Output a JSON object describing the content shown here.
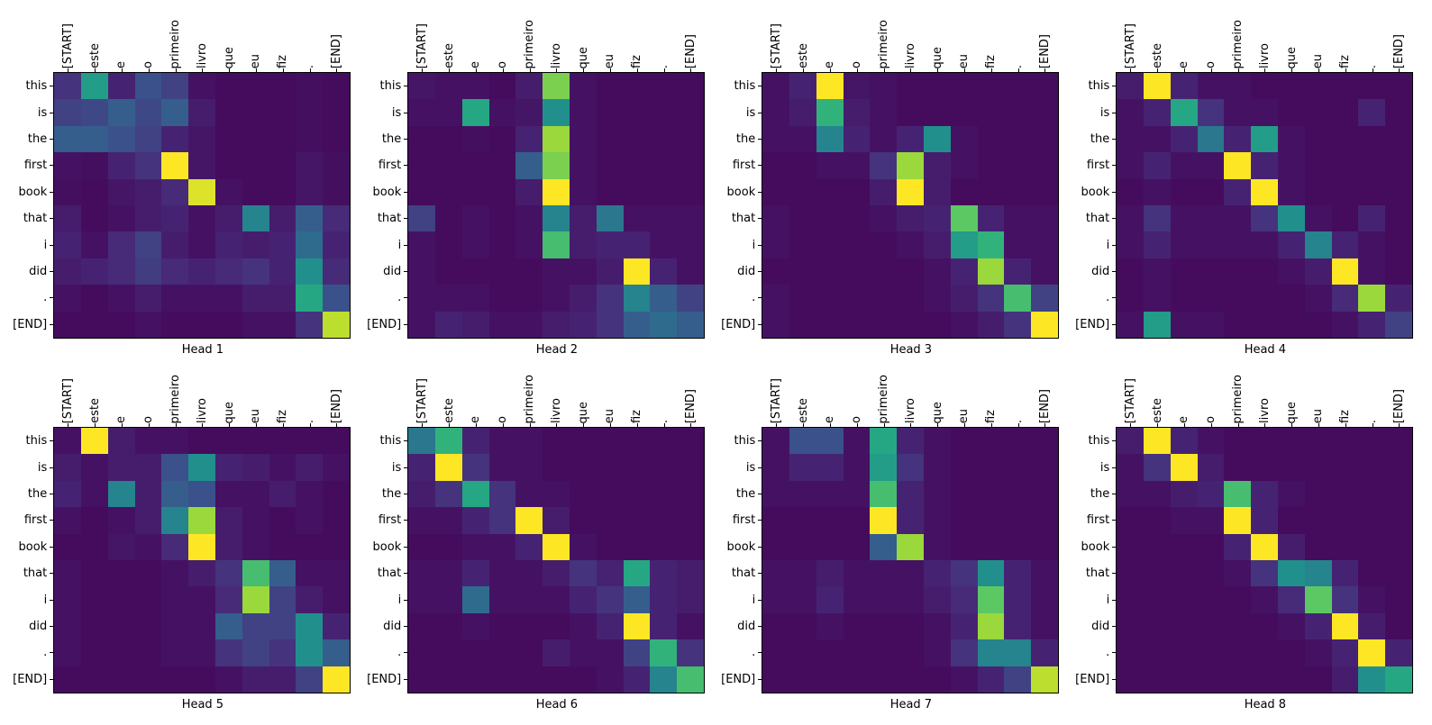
{
  "figure": {
    "background": "#ffffff",
    "description": "Transformer cross-attention weights, 8 heads, Portuguese source tokens (columns) vs English target tokens (rows)",
    "colormap_low": "#440154",
    "colormap_high": "#fde725"
  },
  "chart_data": {
    "type": "heatmap",
    "colormap": "viridis",
    "vmin": 0,
    "vmax": 1,
    "x_tokens": [
      "[START]",
      "este",
      "e",
      "o",
      "primeiro",
      "livro",
      "que",
      "eu",
      "fiz",
      ".",
      "[END]"
    ],
    "y_tokens": [
      "this",
      "is",
      "the",
      "first",
      "book",
      "that",
      "i",
      "did",
      ".",
      "[END]"
    ],
    "heads": [
      {
        "title": "Head 1",
        "values": [
          [
            0.15,
            0.55,
            0.1,
            0.25,
            0.2,
            0.05,
            0.03,
            0.03,
            0.03,
            0.04,
            0.03
          ],
          [
            0.2,
            0.22,
            0.3,
            0.22,
            0.3,
            0.08,
            0.03,
            0.03,
            0.03,
            0.04,
            0.03
          ],
          [
            0.3,
            0.3,
            0.25,
            0.2,
            0.1,
            0.06,
            0.03,
            0.03,
            0.03,
            0.04,
            0.03
          ],
          [
            0.05,
            0.04,
            0.1,
            0.15,
            1.0,
            0.06,
            0.03,
            0.03,
            0.03,
            0.06,
            0.04
          ],
          [
            0.04,
            0.03,
            0.06,
            0.08,
            0.12,
            0.95,
            0.05,
            0.03,
            0.03,
            0.06,
            0.04
          ],
          [
            0.08,
            0.03,
            0.05,
            0.08,
            0.1,
            0.05,
            0.08,
            0.45,
            0.08,
            0.3,
            0.12
          ],
          [
            0.1,
            0.05,
            0.12,
            0.2,
            0.08,
            0.05,
            0.1,
            0.08,
            0.1,
            0.35,
            0.1
          ],
          [
            0.08,
            0.1,
            0.12,
            0.18,
            0.12,
            0.1,
            0.12,
            0.15,
            0.1,
            0.5,
            0.12
          ],
          [
            0.05,
            0.03,
            0.05,
            0.08,
            0.05,
            0.05,
            0.05,
            0.08,
            0.08,
            0.6,
            0.25
          ],
          [
            0.03,
            0.03,
            0.03,
            0.05,
            0.03,
            0.03,
            0.03,
            0.05,
            0.05,
            0.15,
            0.9
          ]
        ]
      },
      {
        "title": "Head 2",
        "values": [
          [
            0.06,
            0.05,
            0.05,
            0.03,
            0.08,
            0.8,
            0.05,
            0.03,
            0.03,
            0.03,
            0.03
          ],
          [
            0.05,
            0.05,
            0.6,
            0.05,
            0.06,
            0.5,
            0.05,
            0.03,
            0.03,
            0.03,
            0.03
          ],
          [
            0.03,
            0.03,
            0.04,
            0.03,
            0.1,
            0.85,
            0.05,
            0.03,
            0.03,
            0.03,
            0.03
          ],
          [
            0.03,
            0.03,
            0.03,
            0.03,
            0.3,
            0.8,
            0.05,
            0.03,
            0.03,
            0.03,
            0.03
          ],
          [
            0.03,
            0.03,
            0.03,
            0.03,
            0.08,
            1.0,
            0.05,
            0.03,
            0.03,
            0.03,
            0.03
          ],
          [
            0.2,
            0.03,
            0.05,
            0.03,
            0.05,
            0.45,
            0.08,
            0.4,
            0.05,
            0.05,
            0.05
          ],
          [
            0.05,
            0.03,
            0.05,
            0.03,
            0.05,
            0.7,
            0.08,
            0.1,
            0.1,
            0.05,
            0.05
          ],
          [
            0.05,
            0.03,
            0.03,
            0.03,
            0.03,
            0.05,
            0.05,
            0.08,
            1.0,
            0.1,
            0.05
          ],
          [
            0.05,
            0.05,
            0.05,
            0.03,
            0.03,
            0.05,
            0.08,
            0.15,
            0.45,
            0.3,
            0.2
          ],
          [
            0.05,
            0.1,
            0.08,
            0.05,
            0.05,
            0.08,
            0.1,
            0.15,
            0.3,
            0.35,
            0.3
          ]
        ]
      },
      {
        "title": "Head 3",
        "values": [
          [
            0.05,
            0.1,
            1.0,
            0.06,
            0.05,
            0.03,
            0.03,
            0.03,
            0.03,
            0.03,
            0.03
          ],
          [
            0.05,
            0.08,
            0.65,
            0.08,
            0.05,
            0.03,
            0.03,
            0.03,
            0.03,
            0.03,
            0.03
          ],
          [
            0.05,
            0.05,
            0.45,
            0.1,
            0.05,
            0.1,
            0.5,
            0.05,
            0.03,
            0.03,
            0.03
          ],
          [
            0.03,
            0.03,
            0.05,
            0.05,
            0.15,
            0.85,
            0.08,
            0.05,
            0.03,
            0.03,
            0.03
          ],
          [
            0.03,
            0.03,
            0.03,
            0.03,
            0.08,
            1.0,
            0.08,
            0.03,
            0.03,
            0.03,
            0.03
          ],
          [
            0.05,
            0.03,
            0.03,
            0.03,
            0.05,
            0.08,
            0.1,
            0.75,
            0.1,
            0.05,
            0.05
          ],
          [
            0.05,
            0.03,
            0.03,
            0.03,
            0.03,
            0.05,
            0.08,
            0.55,
            0.65,
            0.05,
            0.05
          ],
          [
            0.03,
            0.03,
            0.03,
            0.03,
            0.03,
            0.03,
            0.05,
            0.1,
            0.85,
            0.1,
            0.05
          ],
          [
            0.05,
            0.03,
            0.03,
            0.03,
            0.03,
            0.03,
            0.05,
            0.08,
            0.15,
            0.7,
            0.2
          ],
          [
            0.05,
            0.03,
            0.03,
            0.03,
            0.03,
            0.03,
            0.03,
            0.05,
            0.08,
            0.15,
            1.0
          ]
        ]
      },
      {
        "title": "Head 4",
        "values": [
          [
            0.08,
            1.0,
            0.1,
            0.05,
            0.05,
            0.03,
            0.03,
            0.03,
            0.03,
            0.03,
            0.03
          ],
          [
            0.05,
            0.1,
            0.6,
            0.15,
            0.05,
            0.05,
            0.03,
            0.03,
            0.03,
            0.1,
            0.03
          ],
          [
            0.05,
            0.05,
            0.1,
            0.4,
            0.1,
            0.55,
            0.05,
            0.03,
            0.03,
            0.03,
            0.03
          ],
          [
            0.05,
            0.1,
            0.05,
            0.05,
            1.0,
            0.1,
            0.05,
            0.03,
            0.03,
            0.03,
            0.03
          ],
          [
            0.03,
            0.05,
            0.03,
            0.03,
            0.1,
            1.0,
            0.05,
            0.03,
            0.03,
            0.03,
            0.03
          ],
          [
            0.05,
            0.15,
            0.05,
            0.05,
            0.05,
            0.15,
            0.5,
            0.05,
            0.03,
            0.1,
            0.03
          ],
          [
            0.05,
            0.1,
            0.05,
            0.05,
            0.05,
            0.05,
            0.1,
            0.45,
            0.1,
            0.05,
            0.03
          ],
          [
            0.03,
            0.05,
            0.03,
            0.03,
            0.03,
            0.03,
            0.05,
            0.08,
            1.0,
            0.05,
            0.03
          ],
          [
            0.03,
            0.05,
            0.03,
            0.03,
            0.03,
            0.03,
            0.03,
            0.05,
            0.12,
            0.85,
            0.1
          ],
          [
            0.05,
            0.55,
            0.05,
            0.05,
            0.03,
            0.03,
            0.03,
            0.03,
            0.05,
            0.1,
            0.2
          ]
        ]
      },
      {
        "title": "Head 5",
        "values": [
          [
            0.05,
            1.0,
            0.08,
            0.05,
            0.05,
            0.03,
            0.03,
            0.03,
            0.03,
            0.03,
            0.03
          ],
          [
            0.08,
            0.05,
            0.08,
            0.08,
            0.25,
            0.5,
            0.1,
            0.08,
            0.05,
            0.08,
            0.05
          ],
          [
            0.1,
            0.05,
            0.45,
            0.08,
            0.3,
            0.25,
            0.05,
            0.05,
            0.08,
            0.05,
            0.03
          ],
          [
            0.05,
            0.03,
            0.05,
            0.08,
            0.45,
            0.85,
            0.08,
            0.05,
            0.03,
            0.05,
            0.03
          ],
          [
            0.03,
            0.03,
            0.06,
            0.05,
            0.12,
            1.0,
            0.08,
            0.05,
            0.03,
            0.03,
            0.03
          ],
          [
            0.05,
            0.03,
            0.03,
            0.03,
            0.05,
            0.08,
            0.15,
            0.7,
            0.3,
            0.05,
            0.05
          ],
          [
            0.05,
            0.03,
            0.03,
            0.03,
            0.05,
            0.05,
            0.12,
            0.85,
            0.2,
            0.08,
            0.05
          ],
          [
            0.05,
            0.03,
            0.03,
            0.03,
            0.05,
            0.05,
            0.3,
            0.2,
            0.2,
            0.5,
            0.1
          ],
          [
            0.05,
            0.03,
            0.03,
            0.03,
            0.05,
            0.05,
            0.15,
            0.2,
            0.15,
            0.5,
            0.3
          ],
          [
            0.03,
            0.03,
            0.03,
            0.03,
            0.03,
            0.03,
            0.05,
            0.08,
            0.08,
            0.2,
            1.0
          ]
        ]
      },
      {
        "title": "Head 6",
        "values": [
          [
            0.4,
            0.65,
            0.1,
            0.05,
            0.05,
            0.03,
            0.03,
            0.03,
            0.03,
            0.03,
            0.03
          ],
          [
            0.1,
            1.0,
            0.15,
            0.05,
            0.05,
            0.03,
            0.03,
            0.03,
            0.03,
            0.03,
            0.03
          ],
          [
            0.08,
            0.15,
            0.6,
            0.15,
            0.05,
            0.05,
            0.03,
            0.03,
            0.03,
            0.03,
            0.03
          ],
          [
            0.05,
            0.05,
            0.1,
            0.15,
            1.0,
            0.08,
            0.03,
            0.03,
            0.03,
            0.03,
            0.03
          ],
          [
            0.03,
            0.03,
            0.05,
            0.05,
            0.1,
            1.0,
            0.05,
            0.03,
            0.03,
            0.03,
            0.03
          ],
          [
            0.05,
            0.05,
            0.1,
            0.05,
            0.05,
            0.08,
            0.15,
            0.1,
            0.6,
            0.1,
            0.08
          ],
          [
            0.05,
            0.05,
            0.35,
            0.05,
            0.05,
            0.05,
            0.1,
            0.15,
            0.3,
            0.1,
            0.08
          ],
          [
            0.03,
            0.03,
            0.05,
            0.03,
            0.03,
            0.03,
            0.05,
            0.1,
            1.0,
            0.1,
            0.05
          ],
          [
            0.03,
            0.03,
            0.03,
            0.03,
            0.03,
            0.08,
            0.05,
            0.05,
            0.2,
            0.65,
            0.15
          ],
          [
            0.03,
            0.03,
            0.03,
            0.03,
            0.03,
            0.03,
            0.03,
            0.05,
            0.1,
            0.45,
            0.7
          ]
        ]
      },
      {
        "title": "Head 7",
        "values": [
          [
            0.05,
            0.25,
            0.25,
            0.05,
            0.6,
            0.1,
            0.05,
            0.03,
            0.03,
            0.03,
            0.03
          ],
          [
            0.05,
            0.1,
            0.1,
            0.05,
            0.55,
            0.15,
            0.05,
            0.03,
            0.03,
            0.03,
            0.03
          ],
          [
            0.05,
            0.05,
            0.05,
            0.05,
            0.7,
            0.1,
            0.05,
            0.03,
            0.03,
            0.03,
            0.03
          ],
          [
            0.03,
            0.03,
            0.03,
            0.03,
            1.0,
            0.1,
            0.05,
            0.03,
            0.03,
            0.03,
            0.03
          ],
          [
            0.03,
            0.03,
            0.03,
            0.03,
            0.3,
            0.85,
            0.05,
            0.03,
            0.03,
            0.03,
            0.03
          ],
          [
            0.05,
            0.05,
            0.08,
            0.05,
            0.05,
            0.05,
            0.1,
            0.15,
            0.5,
            0.1,
            0.05
          ],
          [
            0.05,
            0.05,
            0.1,
            0.05,
            0.05,
            0.05,
            0.08,
            0.12,
            0.75,
            0.1,
            0.05
          ],
          [
            0.03,
            0.03,
            0.05,
            0.03,
            0.03,
            0.03,
            0.05,
            0.1,
            0.85,
            0.1,
            0.05
          ],
          [
            0.03,
            0.03,
            0.03,
            0.03,
            0.03,
            0.03,
            0.05,
            0.15,
            0.45,
            0.45,
            0.1
          ],
          [
            0.03,
            0.03,
            0.03,
            0.03,
            0.03,
            0.03,
            0.03,
            0.05,
            0.1,
            0.2,
            0.9
          ]
        ]
      },
      {
        "title": "Head 8",
        "values": [
          [
            0.08,
            1.0,
            0.1,
            0.05,
            0.03,
            0.03,
            0.03,
            0.03,
            0.03,
            0.03,
            0.03
          ],
          [
            0.05,
            0.15,
            1.0,
            0.08,
            0.03,
            0.03,
            0.03,
            0.03,
            0.03,
            0.03,
            0.03
          ],
          [
            0.05,
            0.05,
            0.08,
            0.1,
            0.7,
            0.1,
            0.05,
            0.03,
            0.03,
            0.03,
            0.03
          ],
          [
            0.03,
            0.03,
            0.05,
            0.05,
            1.0,
            0.1,
            0.03,
            0.03,
            0.03,
            0.03,
            0.03
          ],
          [
            0.03,
            0.03,
            0.03,
            0.03,
            0.1,
            1.0,
            0.08,
            0.03,
            0.03,
            0.03,
            0.03
          ],
          [
            0.03,
            0.03,
            0.03,
            0.03,
            0.05,
            0.15,
            0.5,
            0.45,
            0.1,
            0.03,
            0.03
          ],
          [
            0.03,
            0.03,
            0.03,
            0.03,
            0.03,
            0.05,
            0.12,
            0.75,
            0.15,
            0.05,
            0.03
          ],
          [
            0.03,
            0.03,
            0.03,
            0.03,
            0.03,
            0.03,
            0.05,
            0.1,
            1.0,
            0.08,
            0.03
          ],
          [
            0.03,
            0.03,
            0.03,
            0.03,
            0.03,
            0.03,
            0.03,
            0.05,
            0.1,
            1.0,
            0.1
          ],
          [
            0.03,
            0.03,
            0.03,
            0.03,
            0.03,
            0.03,
            0.03,
            0.03,
            0.08,
            0.5,
            0.6
          ]
        ]
      }
    ]
  }
}
